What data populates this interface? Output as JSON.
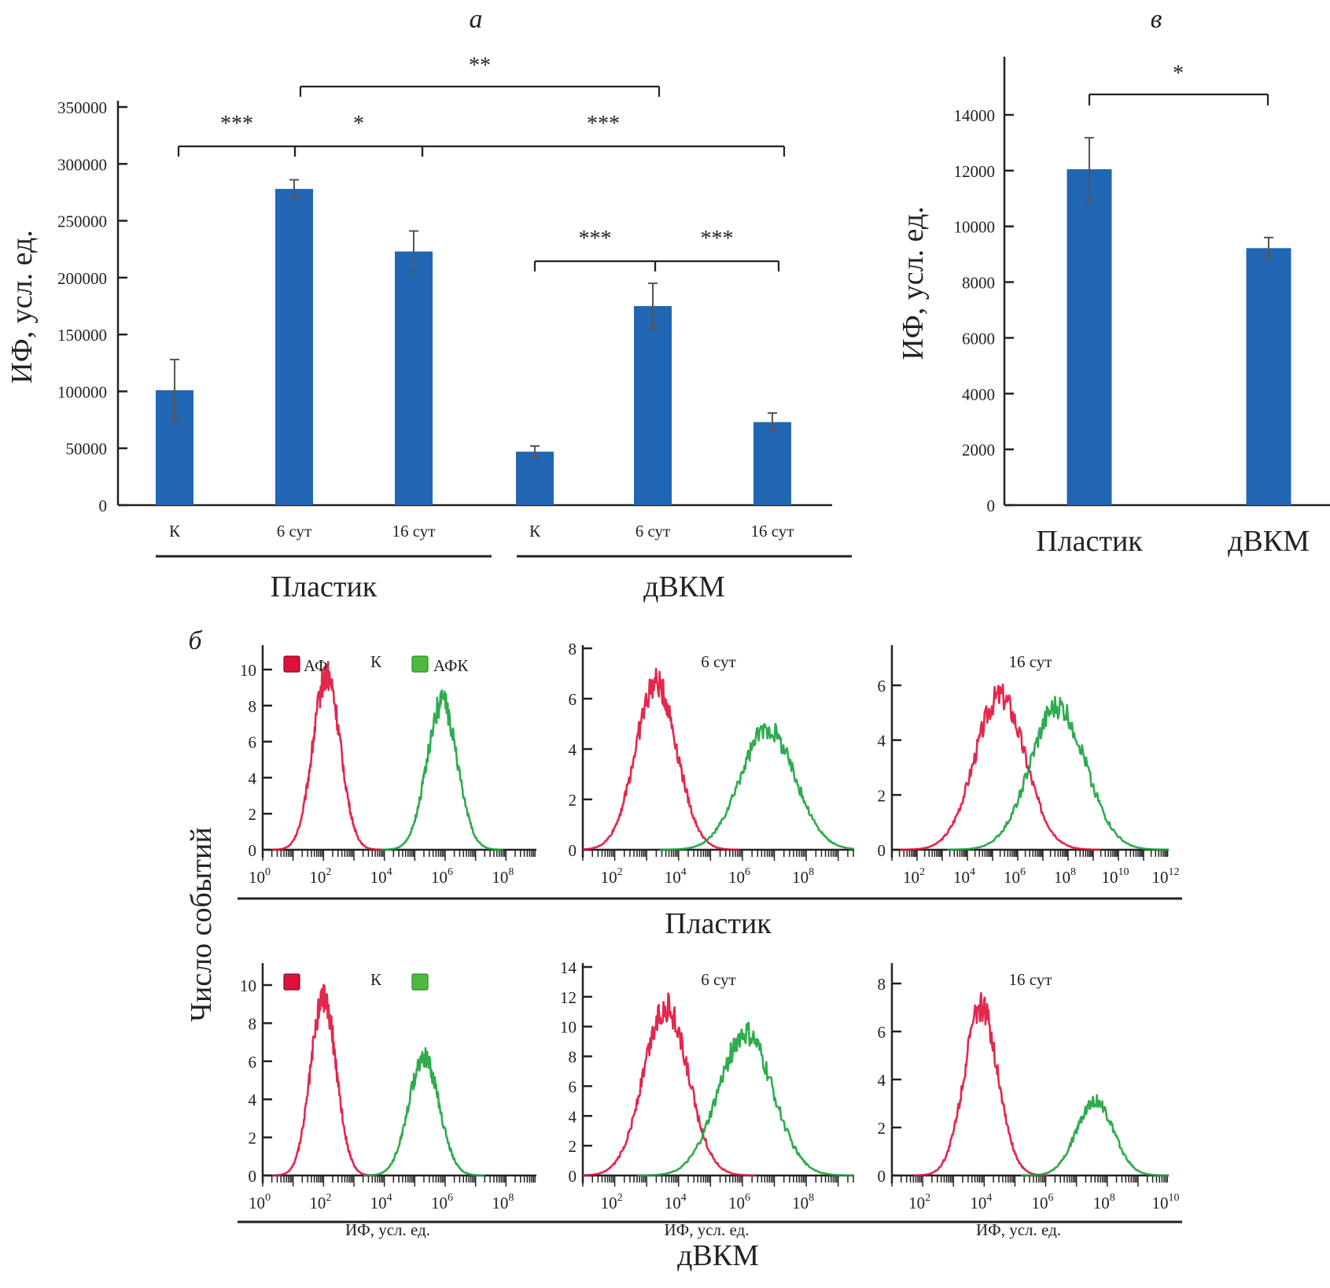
{
  "figure": {
    "panel_a_letter": "а",
    "panel_b_letter": "б",
    "panel_v_letter": "в",
    "bar_color": "#2166b3",
    "af_color": "#e0103a",
    "afk_color": "#18a33a"
  },
  "chart_data": [
    {
      "id": "panel_a",
      "type": "bar",
      "title": "",
      "ylabel": "ИФ, усл. ед.",
      "xlabel": "",
      "ylim": [
        0,
        350000
      ],
      "yticks": [
        0,
        50000,
        100000,
        150000,
        200000,
        250000,
        300000,
        350000
      ],
      "grid": false,
      "categories": [
        "К",
        "6 сут",
        "16 сут",
        "К",
        "6 сут",
        "16 сут"
      ],
      "groups": [
        {
          "label": "Пластик",
          "members": [
            0,
            1,
            2
          ]
        },
        {
          "label": "дВКМ",
          "members": [
            3,
            4,
            5
          ]
        }
      ],
      "values": [
        101000,
        278000,
        223000,
        47000,
        175000,
        73000
      ],
      "errors": [
        27000,
        8000,
        18000,
        5000,
        20000,
        8000
      ],
      "significance": [
        {
          "from": 0,
          "to": 1,
          "label": "***",
          "level": 1
        },
        {
          "from": 1,
          "to": 2,
          "label": "*",
          "level": 1
        },
        {
          "from": 2,
          "to": 5,
          "label": "***",
          "level": 1
        },
        {
          "from": 1,
          "to": 4,
          "label": "**",
          "level": 2
        },
        {
          "from": 3,
          "to": 4,
          "label": "***",
          "level": 0
        },
        {
          "from": 4,
          "to": 5,
          "label": "***",
          "level": 0
        }
      ]
    },
    {
      "id": "panel_v",
      "type": "bar",
      "title": "",
      "ylabel": "ИФ, усл. ед.",
      "xlabel": "",
      "ylim": [
        0,
        16000
      ],
      "yticks": [
        0,
        2000,
        4000,
        6000,
        8000,
        10000,
        12000,
        14000
      ],
      "grid": false,
      "categories": [
        "Пластик",
        "дВКМ"
      ],
      "values": [
        12050,
        9220
      ],
      "errors": [
        1130,
        380
      ],
      "significance": [
        {
          "from": 0,
          "to": 1,
          "label": "*"
        }
      ]
    },
    {
      "id": "panel_b",
      "type": "line",
      "ylabel": "Число событий",
      "xlabel": "ИФ, усл. ед.",
      "xscale": "log",
      "legend": [
        {
          "label": "АФ",
          "color": "#e0103a"
        },
        {
          "label": "АФК",
          "color": "#18a33a"
        }
      ],
      "legend_placement": "top",
      "rows": [
        {
          "group_label": "Пластик",
          "plots": [
            {
              "title": "К",
              "ylim": [
                0,
                11
              ],
              "yticks": [
                0,
                2,
                4,
                6,
                8,
                10
              ],
              "xlim_exp": [
                0,
                9
              ],
              "xtick_exps": [
                0,
                2,
                4,
                6,
                8
              ],
              "series": [
                {
                  "name": "АФ",
                  "peak_log10": 2.1,
                  "peak_height": 9.7,
                  "width": 0.45
                },
                {
                  "name": "АФК",
                  "peak_log10": 5.9,
                  "peak_height": 8.2,
                  "width": 0.5
                }
              ]
            },
            {
              "title": "6 сут",
              "ylim": [
                0,
                8.5
              ],
              "yticks": [
                0,
                2,
                4,
                6,
                8
              ],
              "xlim_exp": [
                1,
                9.5
              ],
              "xtick_exps": [
                2,
                4,
                6,
                8
              ],
              "series": [
                {
                  "name": "АФ",
                  "peak_log10": 3.3,
                  "peak_height": 6.6,
                  "width": 0.65
                },
                {
                  "name": "АФК",
                  "peak_log10": 6.8,
                  "peak_height": 4.8,
                  "width": 0.85
                }
              ]
            },
            {
              "title": "16 сут",
              "ylim": [
                0,
                7.5
              ],
              "yticks": [
                0,
                2,
                4,
                6
              ],
              "xlim_exp": [
                1,
                12
              ],
              "xtick_exps": [
                2,
                4,
                6,
                8,
                10,
                12
              ],
              "series": [
                {
                  "name": "АФ",
                  "peak_log10": 5.3,
                  "peak_height": 5.6,
                  "width": 1.0
                },
                {
                  "name": "АФК",
                  "peak_log10": 7.6,
                  "peak_height": 5.2,
                  "width": 1.1
                }
              ]
            }
          ]
        },
        {
          "group_label": "дВКМ",
          "plots": [
            {
              "title": "К",
              "ylim": [
                0,
                11.5
              ],
              "yticks": [
                0,
                2,
                4,
                6,
                8,
                10
              ],
              "xlim_exp": [
                0,
                9
              ],
              "xtick_exps": [
                0,
                2,
                4,
                6,
                8
              ],
              "series": [
                {
                  "name": "АФ",
                  "peak_log10": 2.0,
                  "peak_height": 9.4,
                  "width": 0.42
                },
                {
                  "name": "АФК",
                  "peak_log10": 5.3,
                  "peak_height": 6.2,
                  "width": 0.5
                }
              ]
            },
            {
              "title": "6 сут",
              "ylim": [
                0,
                14.5
              ],
              "yticks": [
                0,
                2,
                4,
                6,
                8,
                10,
                12,
                14
              ],
              "xlim_exp": [
                1,
                9.5
              ],
              "xtick_exps": [
                2,
                4,
                6,
                8
              ],
              "series": [
                {
                  "name": "АФ",
                  "peak_log10": 3.6,
                  "peak_height": 11.3,
                  "width": 0.7
                },
                {
                  "name": "АФК",
                  "peak_log10": 6.1,
                  "peak_height": 9.5,
                  "width": 0.85
                }
              ]
            },
            {
              "title": "16 сут",
              "ylim": [
                0,
                9
              ],
              "yticks": [
                0,
                2,
                4,
                6,
                8
              ],
              "xlim_exp": [
                1,
                10
              ],
              "xtick_exps": [
                2,
                4,
                6,
                8,
                10
              ],
              "series": [
                {
                  "name": "АФ",
                  "peak_log10": 3.9,
                  "peak_height": 7.0,
                  "width": 0.55
                },
                {
                  "name": "АФК",
                  "peak_log10": 7.6,
                  "peak_height": 3.1,
                  "width": 0.6
                }
              ]
            }
          ]
        }
      ]
    }
  ]
}
